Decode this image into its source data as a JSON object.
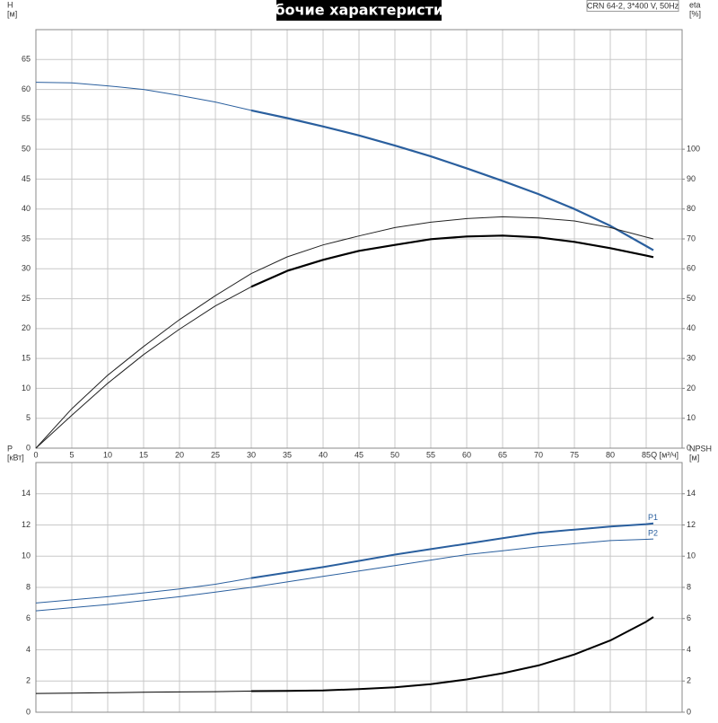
{
  "chart_data": [
    {
      "type": "line",
      "title": "Рабочие характеристики",
      "note": "CRN 64-2, 3*400 V, 50Hz",
      "ylabel": "H",
      "yunit": "[м]",
      "y2label": "eta",
      "y2unit": "[%]",
      "xlabel": "Q [м³/ч]",
      "x": [
        0,
        5,
        10,
        15,
        20,
        25,
        30,
        35,
        40,
        45,
        50,
        55,
        60,
        65,
        70,
        75,
        80,
        85,
        86
      ],
      "xlim": [
        0,
        90
      ],
      "xticks": [
        0,
        5,
        10,
        15,
        20,
        25,
        30,
        35,
        40,
        45,
        50,
        55,
        60,
        65,
        70,
        75,
        80,
        85
      ],
      "ylim": [
        0,
        70
      ],
      "yticks": [
        0,
        5,
        10,
        15,
        20,
        25,
        30,
        35,
        40,
        45,
        50,
        55,
        60,
        65
      ],
      "y2lim": [
        0,
        140
      ],
      "y2ticks": [
        0,
        10,
        20,
        30,
        40,
        50,
        60,
        70,
        80,
        90,
        100
      ],
      "grid": true,
      "xtick_labels": true,
      "series": [
        {
          "color": "#2a5f9e",
          "width": 1,
          "values": [
            61.2,
            61.1,
            60.6,
            60,
            59,
            57.9,
            56.5,
            null,
            null,
            null,
            null,
            null,
            null,
            null,
            null,
            null,
            null,
            null,
            null
          ]
        },
        {
          "color": "#2a5f9e",
          "width": 2.2,
          "values": [
            null,
            null,
            null,
            null,
            null,
            null,
            56.5,
            55.2,
            53.8,
            52.3,
            50.6,
            48.8,
            46.8,
            44.7,
            42.5,
            40,
            37.2,
            33.8,
            33.1
          ]
        },
        {
          "color": "#222222",
          "width": 1,
          "axis": "y2",
          "values": [
            0,
            13.2,
            24.4,
            34,
            43,
            51,
            58.4,
            64,
            68,
            71,
            73.8,
            75.6,
            76.8,
            77.4,
            77,
            76,
            73.8,
            70.6,
            70
          ]
        },
        {
          "color": "#222222",
          "width": 1,
          "axis": "y2",
          "values": [
            0,
            11,
            21.7,
            31.3,
            39.8,
            47.6,
            54,
            null,
            null,
            null,
            null,
            null,
            null,
            null,
            null,
            null,
            null,
            null,
            null
          ]
        },
        {
          "color": "#000000",
          "width": 2.2,
          "axis": "y2",
          "values": [
            null,
            null,
            null,
            null,
            null,
            null,
            54,
            59.3,
            63,
            66,
            68,
            69.9,
            70.8,
            71.1,
            70.5,
            69,
            66.9,
            64.4,
            63.9
          ]
        }
      ]
    },
    {
      "type": "line",
      "ylabel": "P",
      "yunit": "[кВт]",
      "y2label": "NPSH",
      "y2unit": "[м]",
      "x": [
        0,
        5,
        10,
        15,
        20,
        25,
        30,
        35,
        40,
        45,
        50,
        55,
        60,
        65,
        70,
        75,
        80,
        85,
        86
      ],
      "xlim": [
        0,
        90
      ],
      "xticks": [
        0,
        5,
        10,
        15,
        20,
        25,
        30,
        35,
        40,
        45,
        50,
        55,
        60,
        65,
        70,
        75,
        80,
        85
      ],
      "ylim": [
        0,
        16
      ],
      "yticks": [
        0,
        2,
        4,
        6,
        8,
        10,
        12,
        14
      ],
      "y2lim": [
        0,
        16
      ],
      "y2ticks": [
        0,
        2,
        4,
        6,
        8,
        10,
        12,
        14
      ],
      "grid": true,
      "xtick_labels": false,
      "series": [
        {
          "color": "#2a5f9e",
          "width": 1,
          "values": [
            7.0,
            7.2,
            7.4,
            7.65,
            7.9,
            8.2,
            8.6,
            null,
            null,
            null,
            null,
            null,
            null,
            null,
            null,
            null,
            null,
            null,
            null
          ]
        },
        {
          "name": "P1",
          "color": "#2a5f9e",
          "width": 2,
          "values": [
            null,
            null,
            null,
            null,
            null,
            null,
            8.6,
            8.95,
            9.3,
            9.7,
            10.1,
            10.45,
            10.8,
            11.15,
            11.5,
            11.7,
            11.9,
            12.05,
            12.1
          ]
        },
        {
          "name": "P2",
          "color": "#2a5f9e",
          "width": 1,
          "values": [
            6.5,
            6.7,
            6.9,
            7.15,
            7.4,
            7.7,
            8.0,
            8.35,
            8.7,
            9.05,
            9.4,
            9.75,
            10.1,
            10.35,
            10.6,
            10.8,
            11.0,
            11.08,
            11.1
          ]
        },
        {
          "color": "#000000",
          "width": 1,
          "axis": "y2",
          "values": [
            1.2,
            1.22,
            1.25,
            1.28,
            1.3,
            1.32,
            1.35,
            null,
            null,
            null,
            null,
            null,
            null,
            null,
            null,
            null,
            null,
            null,
            null
          ]
        },
        {
          "color": "#000000",
          "width": 2,
          "axis": "y2",
          "values": [
            null,
            null,
            null,
            null,
            null,
            null,
            1.35,
            1.37,
            1.4,
            1.48,
            1.6,
            1.8,
            2.1,
            2.5,
            3.0,
            3.7,
            4.6,
            5.8,
            6.1
          ]
        }
      ]
    }
  ]
}
